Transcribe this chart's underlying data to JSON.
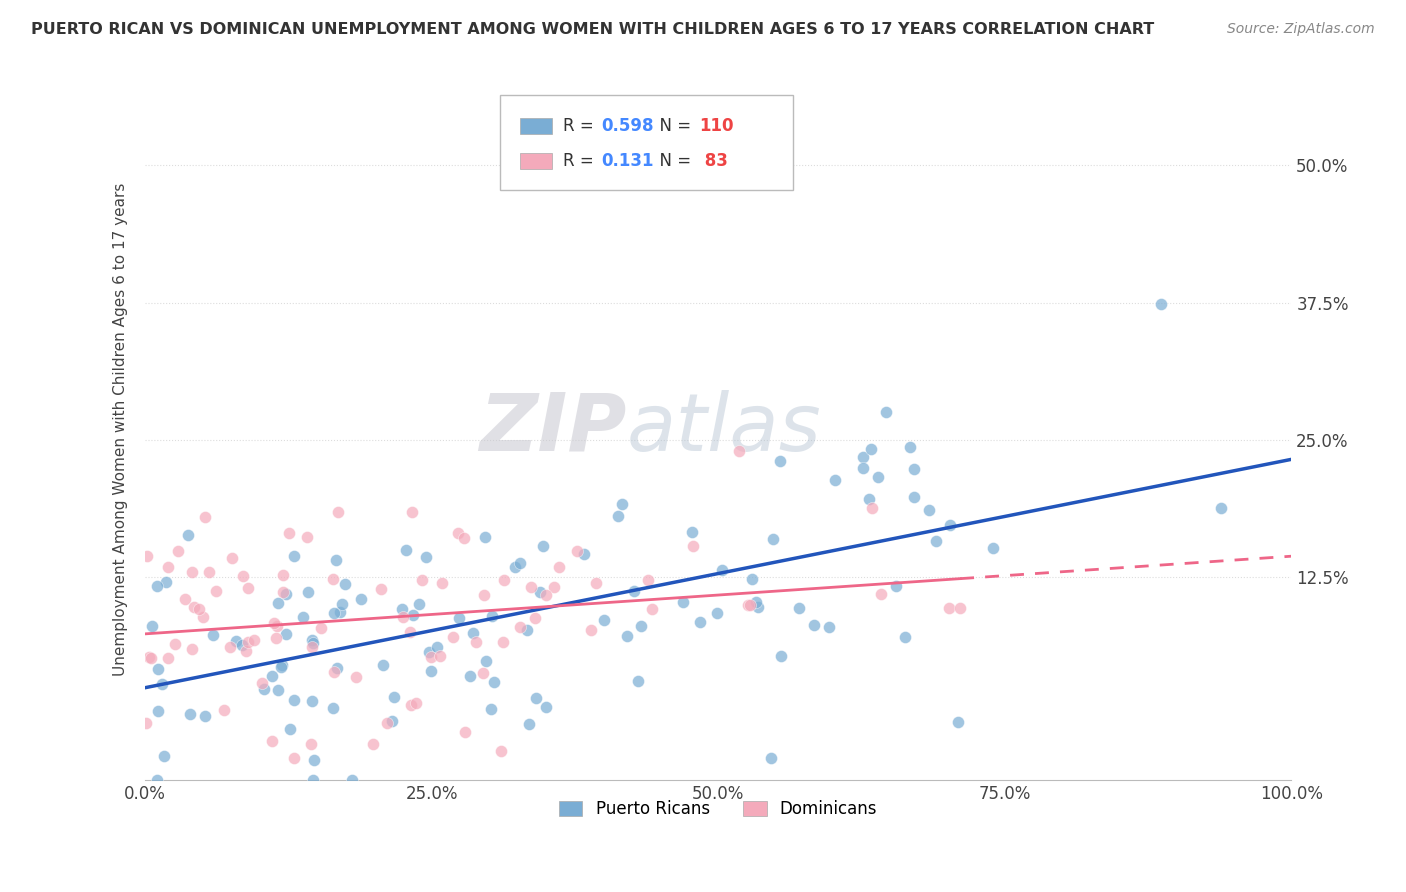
{
  "title": "PUERTO RICAN VS DOMINICAN UNEMPLOYMENT AMONG WOMEN WITH CHILDREN AGES 6 TO 17 YEARS CORRELATION CHART",
  "source": "Source: ZipAtlas.com",
  "ylabel": "Unemployment Among Women with Children Ages 6 to 17 years",
  "xlim": [
    0.0,
    1.0
  ],
  "ylim": [
    -0.06,
    0.58
  ],
  "xticks": [
    0.0,
    0.25,
    0.5,
    0.75,
    1.0
  ],
  "xticklabels": [
    "0.0%",
    "25.0%",
    "50.0%",
    "75.0%",
    "100.0%"
  ],
  "yticks": [
    0.0,
    0.125,
    0.25,
    0.375,
    0.5
  ],
  "yticklabels": [
    "",
    "12.5%",
    "25.0%",
    "37.5%",
    "50.0%"
  ],
  "pr_color": "#7AADD4",
  "dom_color": "#F4AABB",
  "pr_line_color": "#2255BB",
  "dom_line_color": "#EE6688",
  "pr_R": 0.598,
  "pr_N": 110,
  "dom_R": 0.131,
  "dom_N": 83,
  "watermark_zip": "ZIP",
  "watermark_atlas": "atlas",
  "legend_labels": [
    "Puerto Ricans",
    "Dominicans"
  ],
  "background_color": "#FFFFFF",
  "grid_color": "#DDDDDD",
  "pr_line_start_y": 0.02,
  "pr_line_end_y": 0.25,
  "dom_line_start_y": 0.125,
  "dom_line_end_y": 0.195
}
